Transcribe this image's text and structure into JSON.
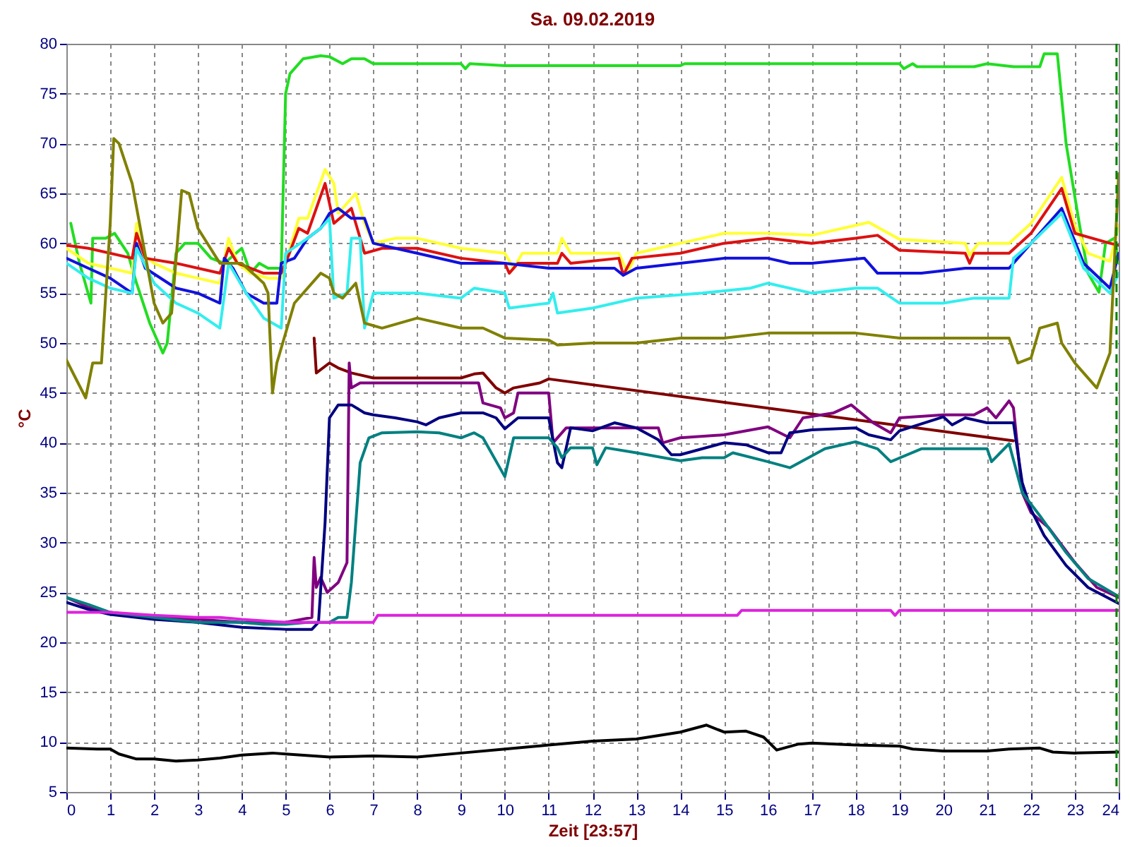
{
  "chart_data": {
    "type": "line",
    "title": "Sa. 09.02.2019",
    "xlabel": "Zeit [23:57]",
    "ylabel": "°C",
    "xlim": [
      0,
      24
    ],
    "xticks": [
      0,
      1,
      2,
      3,
      4,
      5,
      6,
      7,
      8,
      9,
      10,
      11,
      12,
      13,
      14,
      15,
      16,
      17,
      18,
      19,
      20,
      21,
      22,
      23,
      24
    ],
    "ylim": [
      5,
      80
    ],
    "yticks": [
      5,
      10,
      15,
      20,
      25,
      30,
      35,
      40,
      45,
      50,
      55,
      60,
      65,
      70,
      75,
      80
    ],
    "grid": true,
    "ref_lines": [
      {
        "axis": "x",
        "value": 23.95,
        "color": "#008000",
        "line_style": "dashed"
      }
    ],
    "series": [
      {
        "color": "#22dd22",
        "x": [
          0.1,
          0.3,
          0.56,
          0.6,
          0.9,
          1.1,
          1.4,
          1.6,
          1.9,
          2.2,
          2.3,
          2.5,
          2.7,
          3,
          3.3,
          3.6,
          4.0,
          4.2,
          4.4,
          4.6,
          4.9,
          5.0,
          5.1,
          5.4,
          5.8,
          6.0,
          6.3,
          6.5,
          6.8,
          7.0,
          9.0,
          9.1,
          9.2,
          10,
          14,
          14.1,
          19,
          19.1,
          19.3,
          19.4,
          20.7,
          21,
          21.6,
          22.2,
          22.3,
          22.6,
          22.8,
          23.1,
          23.3,
          23.55,
          23.7,
          23.9,
          24
        ],
        "values": [
          62,
          58,
          54,
          60.5,
          60.5,
          61,
          59,
          56,
          52,
          49,
          50,
          59,
          60,
          60,
          58.5,
          58,
          59.5,
          57,
          58,
          57.5,
          57.5,
          75,
          77,
          78.5,
          78.8,
          78.7,
          78,
          78.5,
          78.5,
          78,
          78,
          77.5,
          78,
          77.8,
          77.8,
          78,
          78,
          77.5,
          78,
          77.7,
          77.7,
          78,
          77.7,
          77.7,
          79,
          79,
          70,
          62,
          57,
          55.1,
          60,
          60.5,
          58
        ]
      },
      {
        "color": "#ffff33",
        "x": [
          0,
          0.5,
          1.0,
          1.5,
          1.6,
          1.7,
          2,
          2.5,
          3,
          3.5,
          3.7,
          3.9,
          4.2,
          4.6,
          4.9,
          5.0,
          5.3,
          5.5,
          5.9,
          6.1,
          6.2,
          6.6,
          6.8,
          7.0,
          7.5,
          8,
          9,
          10,
          10.2,
          10.4,
          11.2,
          11.3,
          11.5,
          12.6,
          12.8,
          13.0,
          14,
          15,
          16,
          17,
          18.3,
          19,
          20.5,
          20.6,
          20.8,
          21.5,
          22,
          22.7,
          23.0,
          23.3,
          23.8,
          24
        ],
        "values": [
          59.5,
          58,
          57.5,
          57,
          62,
          59,
          58,
          57,
          56.5,
          56,
          60.5,
          58,
          57,
          56.5,
          56.5,
          58,
          62.5,
          62.5,
          67.4,
          66,
          63,
          65,
          62,
          60,
          60.5,
          60.5,
          59.5,
          59,
          57.5,
          59,
          59,
          60.5,
          59,
          59,
          57,
          59,
          60,
          61,
          61,
          60.8,
          62.1,
          60.4,
          60,
          58.8,
          60,
          60,
          62,
          66.6,
          61.8,
          59,
          58.2,
          61.8
        ]
      },
      {
        "color": "#dd1111",
        "x": [
          0,
          0.5,
          1.5,
          1.6,
          1.8,
          2.5,
          3.5,
          3.7,
          3.9,
          4.5,
          4.9,
          5.0,
          5.3,
          5.5,
          5.9,
          6.1,
          6.5,
          6.8,
          7.2,
          8,
          9,
          10,
          10.1,
          10.3,
          11.2,
          11.3,
          11.5,
          12.6,
          12.7,
          12.9,
          14,
          15,
          16,
          17,
          18,
          18.5,
          19,
          20.5,
          20.6,
          20.7,
          21.5,
          22,
          22.7,
          23,
          23.8,
          24
        ],
        "values": [
          59.8,
          59.5,
          58.5,
          61,
          58.5,
          58,
          57,
          59.5,
          58,
          57,
          57,
          58,
          61.5,
          61,
          66,
          62,
          63.5,
          59,
          59.5,
          59.5,
          58.5,
          58,
          57,
          58,
          58,
          59,
          58,
          58.5,
          56.8,
          58.5,
          59,
          60,
          60.5,
          60,
          60.5,
          60.8,
          59.3,
          59,
          58,
          59,
          59,
          61,
          65.5,
          61,
          60,
          59.8
        ]
      },
      {
        "color": "#1111dd",
        "x": [
          0,
          0.5,
          1,
          1.5,
          1.6,
          1.8,
          2.5,
          3,
          3.5,
          3.6,
          3.8,
          4.1,
          4.5,
          4.8,
          4.9,
          5.2,
          5.5,
          5.8,
          6.0,
          6.2,
          6.5,
          6.8,
          7.0,
          7.5,
          8,
          9,
          10,
          11.0,
          12.5,
          12.7,
          13.0,
          14,
          15,
          16,
          16.5,
          17,
          18.2,
          18.5,
          19.5,
          20.5,
          21.5,
          22,
          22.7,
          23.2,
          23.8,
          24
        ],
        "values": [
          58.5,
          57.5,
          56.5,
          55,
          60,
          57.5,
          55.5,
          55,
          54,
          58.5,
          57.5,
          55,
          54,
          54,
          58,
          58.5,
          60.5,
          61.5,
          63,
          63.5,
          62.5,
          62.5,
          60,
          59.5,
          59,
          58,
          58,
          57.5,
          57.5,
          56.8,
          57.5,
          58,
          58.5,
          58.5,
          58,
          58,
          58.5,
          57,
          57,
          57.5,
          57.5,
          60,
          63.5,
          58,
          55.5,
          59
        ]
      },
      {
        "color": "#33eeee",
        "x": [
          0,
          0.5,
          1,
          1.5,
          1.6,
          2,
          2.5,
          3,
          3.5,
          3.7,
          4.1,
          4.5,
          4.9,
          5.0,
          5.5,
          5.8,
          6.0,
          6.1,
          6.4,
          6.5,
          6.7,
          6.8,
          7.0,
          8,
          9,
          9.3,
          10,
          10.1,
          11.0,
          11.1,
          11.2,
          12,
          13,
          14.5,
          15.6,
          16,
          17,
          18,
          18.5,
          19,
          20,
          20.7,
          21.5,
          21.6,
          22,
          22.7,
          23.2,
          23.8,
          24
        ],
        "values": [
          58,
          56.5,
          55.5,
          55,
          59.5,
          56,
          54,
          53,
          51.5,
          58,
          55,
          52.5,
          51.5,
          59,
          60.5,
          61.5,
          62.5,
          54.5,
          55,
          60.5,
          60.5,
          51.5,
          55,
          55,
          54.5,
          55.5,
          55,
          53.5,
          54,
          55,
          53,
          53.5,
          54.5,
          55,
          55.5,
          56,
          55,
          55.5,
          55.5,
          54,
          54,
          54.5,
          54.5,
          58.5,
          60,
          63,
          57.5,
          55,
          57
        ]
      },
      {
        "color": "#808000",
        "x": [
          0,
          0.44,
          0.6,
          0.8,
          1.0,
          1.08,
          1.2,
          1.5,
          2.0,
          2.2,
          2.4,
          2.63,
          2.8,
          3,
          3.5,
          4.0,
          4.5,
          4.6,
          4.7,
          4.8,
          5.2,
          5.8,
          6.0,
          6.1,
          6.3,
          6.6,
          6.8,
          7.2,
          8,
          9,
          9.5,
          10,
          11,
          11.2,
          12,
          13,
          14,
          15,
          16,
          17,
          18,
          19,
          20,
          21,
          21.5,
          21.7,
          22,
          22.2,
          22.6,
          22.7,
          23,
          23.5,
          23.8,
          24
        ],
        "values": [
          48.3,
          44.5,
          48,
          48,
          62,
          70.5,
          70,
          66,
          54,
          52,
          53,
          65.3,
          65,
          61.5,
          58,
          58,
          56,
          55,
          45,
          48,
          54,
          57,
          56.5,
          55,
          54.5,
          56,
          52,
          51.5,
          52.5,
          51.5,
          51.5,
          50.5,
          50.3,
          49.8,
          50,
          50,
          50.5,
          50.5,
          51,
          51,
          51,
          50.5,
          50.5,
          50.5,
          50.5,
          48,
          48.5,
          51.5,
          52,
          50,
          48,
          45.5,
          49,
          67
        ]
      },
      {
        "color": "#800000",
        "x": [
          5.65,
          5.7,
          6.0,
          6.2,
          6.5,
          7,
          8,
          9,
          9.3,
          9.5,
          9.8,
          10.0,
          10.2,
          10.8,
          11.0,
          21.6
        ],
        "values": [
          50.5,
          47,
          48,
          47.5,
          47,
          46.5,
          46.5,
          46.5,
          46.9,
          47,
          45.5,
          45,
          45.5,
          46,
          46.4,
          40.2
        ]
      },
      {
        "color": "#800080",
        "x": [
          0,
          0.5,
          1,
          2,
          3,
          4,
          5,
          5.6,
          5.65,
          5.7,
          5.8,
          5.95,
          6.2,
          6.4,
          6.45,
          6.5,
          6.7,
          7,
          8,
          9,
          9.4,
          9.5,
          9.9,
          10.0,
          10.2,
          10.3,
          11.0,
          11.1,
          11.4,
          12,
          12.5,
          13.5,
          13.6,
          14,
          15,
          16,
          16.5,
          16.8,
          17.5,
          17.9,
          18.4,
          18.8,
          19,
          20,
          20.7,
          21,
          21.2,
          21.5,
          21.6,
          21.8,
          22,
          22.4,
          23,
          23.5,
          24
        ],
        "values": [
          24.5,
          23.5,
          23,
          22.5,
          22.3,
          22,
          22,
          22.5,
          28.5,
          25.5,
          26.5,
          25,
          26,
          28,
          48,
          45.5,
          46,
          46,
          46,
          46,
          46,
          44,
          43.5,
          42.5,
          43,
          45,
          45,
          40,
          41.5,
          41.5,
          41.5,
          41.5,
          40,
          40.5,
          40.8,
          41.6,
          40.5,
          42.5,
          43,
          43.8,
          42,
          41,
          42.5,
          42.8,
          42.8,
          43.5,
          42.5,
          44.2,
          43.5,
          35,
          33,
          31.5,
          28,
          25.5,
          24.5
        ]
      },
      {
        "color": "#000080",
        "x": [
          0,
          0.5,
          1,
          2,
          3,
          4,
          5,
          5.6,
          5.75,
          5.9,
          6.0,
          6.2,
          6.5,
          6.8,
          7.0,
          7.5,
          8,
          8.2,
          8.5,
          9.0,
          9.5,
          9.8,
          10,
          10.3,
          11,
          11.2,
          11.3,
          11.5,
          12,
          12.5,
          13,
          13.5,
          13.8,
          14,
          15,
          15.5,
          16,
          16.3,
          16.5,
          17,
          18,
          18.3,
          18.8,
          19,
          20,
          20.2,
          20.5,
          21,
          21.6,
          21.8,
          22,
          22.3,
          22.8,
          23.3,
          24
        ],
        "values": [
          24,
          23.3,
          22.8,
          22.3,
          22,
          21.5,
          21.3,
          21.3,
          22,
          32,
          42.5,
          43.8,
          43.8,
          43,
          42.8,
          42.5,
          42.1,
          41.8,
          42.5,
          43,
          43,
          42.5,
          41.4,
          42.5,
          42.5,
          38,
          37.5,
          41.5,
          41.2,
          42,
          41.5,
          40.3,
          38.8,
          38.8,
          40,
          39.8,
          39,
          39,
          41,
          41.3,
          41.5,
          40.8,
          40.3,
          41.2,
          42.6,
          41.8,
          42.5,
          42,
          42,
          36,
          33.3,
          30.7,
          27.7,
          25.5,
          23.9
        ]
      },
      {
        "color": "#008080",
        "x": [
          0,
          0.5,
          1,
          2,
          3,
          4,
          4.5,
          5,
          5.5,
          6.0,
          6.2,
          6.4,
          6.5,
          6.7,
          6.9,
          7.2,
          8,
          8.5,
          9.0,
          9.3,
          9.5,
          10.0,
          10.2,
          11.0,
          11.2,
          11.3,
          11.5,
          12.0,
          12.1,
          12.3,
          13.0,
          14,
          14.5,
          15,
          15.2,
          16,
          16.5,
          17.3,
          18,
          18.5,
          18.8,
          19.5,
          21,
          21.1,
          21.5,
          21.8,
          22.2,
          22.8,
          23.3,
          24
        ],
        "values": [
          24.5,
          23.8,
          23,
          22.5,
          22,
          22,
          21.8,
          21.8,
          22,
          22,
          22.5,
          22.5,
          26,
          38,
          40.5,
          41,
          41.1,
          41,
          40.5,
          41,
          40.5,
          36.6,
          40.5,
          40.5,
          39.5,
          38.5,
          39.5,
          39.5,
          37.8,
          39.5,
          39,
          38.2,
          38.5,
          38.5,
          39,
          38.1,
          37.5,
          39.4,
          40.1,
          39.4,
          38.1,
          39.4,
          39.4,
          38.1,
          39.9,
          35,
          32.7,
          29,
          26.4,
          24.6
        ]
      },
      {
        "color": "#dd22dd",
        "x": [
          0,
          1,
          2,
          3,
          3.5,
          4,
          5,
          6,
          7.0,
          7.1,
          15.3,
          15.4,
          18.8,
          18.9,
          19.0,
          24
        ],
        "values": [
          23,
          23,
          22.7,
          22.5,
          22.5,
          22.3,
          22,
          22,
          22,
          22.7,
          22.7,
          23.2,
          23.2,
          22.7,
          23.2,
          23.2
        ]
      },
      {
        "color": "#000000",
        "x": [
          0,
          0.7,
          1.0,
          1.2,
          1.6,
          2,
          2.5,
          3,
          3.5,
          4,
          4.7,
          5,
          6,
          7,
          8,
          9,
          10,
          11,
          12,
          13,
          14,
          14.6,
          15,
          15.5,
          15.9,
          16.2,
          16.7,
          17,
          18,
          19,
          19.3,
          20,
          21,
          21.5,
          22.2,
          22.5,
          23,
          24
        ],
        "values": [
          9.4,
          9.3,
          9.3,
          8.8,
          8.3,
          8.3,
          8.1,
          8.2,
          8.4,
          8.7,
          8.9,
          8.8,
          8.5,
          8.6,
          8.5,
          8.9,
          9.3,
          9.7,
          10.1,
          10.3,
          11,
          11.7,
          11,
          11.1,
          10.5,
          9.2,
          9.8,
          9.9,
          9.7,
          9.6,
          9.3,
          9.1,
          9.1,
          9.3,
          9.4,
          9,
          8.9,
          9
        ]
      }
    ]
  }
}
